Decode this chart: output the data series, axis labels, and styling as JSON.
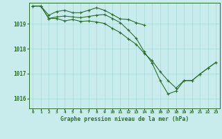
{
  "title": "Graphe pression niveau de la mer (hPa)",
  "background_color": "#c8ecec",
  "grid_color": "#a8d8d8",
  "line_color": "#2d6e2d",
  "xlim": [
    -0.5,
    23.5
  ],
  "ylim": [
    1015.6,
    1019.85
  ],
  "yticks": [
    1016,
    1017,
    1018,
    1019
  ],
  "xticks": [
    0,
    1,
    2,
    3,
    4,
    5,
    6,
    7,
    8,
    9,
    10,
    11,
    12,
    13,
    14,
    15,
    16,
    17,
    18,
    19,
    20,
    21,
    22,
    23
  ],
  "series1_x": [
    0,
    1,
    2,
    3,
    4,
    5,
    6,
    7,
    8,
    9,
    10,
    11,
    12,
    13,
    14
  ],
  "series1_y": [
    1019.72,
    1019.72,
    1019.35,
    1019.5,
    1019.55,
    1019.45,
    1019.45,
    1019.55,
    1019.65,
    1019.55,
    1019.38,
    1019.2,
    1019.18,
    1019.05,
    1018.95
  ],
  "series2_x": [
    0,
    1,
    2,
    3,
    4,
    5,
    6,
    7,
    8,
    9,
    10,
    11,
    12,
    13,
    14,
    15,
    16,
    17,
    18,
    19,
    20,
    21,
    22,
    23
  ],
  "series2_y": [
    1019.72,
    1019.72,
    1019.22,
    1019.22,
    1019.12,
    1019.18,
    1019.1,
    1019.12,
    1019.08,
    1019.02,
    1018.82,
    1018.65,
    1018.4,
    1018.18,
    1017.82,
    1017.52,
    1017.08,
    1016.72,
    1016.42,
    1016.72,
    1016.72,
    1016.98,
    1017.22,
    1017.45
  ],
  "series3_x": [
    0,
    1,
    2,
    3,
    4,
    5,
    6,
    7,
    8,
    9,
    10,
    11,
    12,
    13,
    14,
    15,
    16,
    17,
    18,
    19,
    20,
    21,
    22,
    23
  ],
  "series3_y": [
    1019.72,
    1019.72,
    1019.22,
    1019.28,
    1019.32,
    1019.28,
    1019.25,
    1019.3,
    1019.35,
    1019.38,
    1019.22,
    1019.05,
    1018.75,
    1018.42,
    1017.88,
    1017.42,
    1016.72,
    1016.18,
    1016.3,
    1016.72,
    1016.72,
    1016.98,
    1017.22,
    1017.45
  ]
}
